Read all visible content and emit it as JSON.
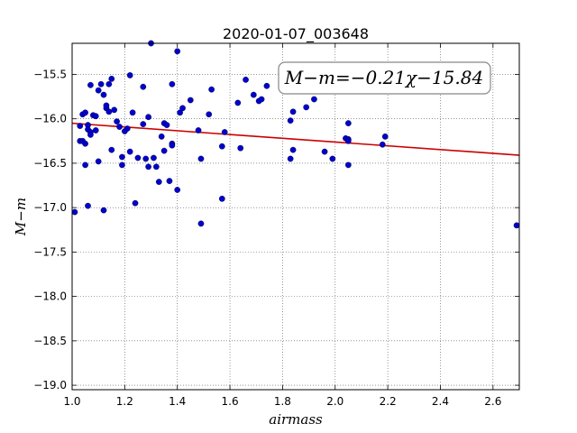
{
  "chart_data": {
    "type": "scatter",
    "title": "2020-01-07_003648",
    "xlabel": "airmass",
    "ylabel": "M−m",
    "annotation": "M−m=−0.21χ−15.84",
    "xlim": [
      1.0,
      2.7
    ],
    "ylim": [
      -19.05,
      -15.15
    ],
    "y_inverted": true,
    "grid": true,
    "xticks": [
      "1.0",
      "1.2",
      "1.4",
      "1.6",
      "1.8",
      "2.0",
      "2.2",
      "2.4",
      "2.6"
    ],
    "yticks": [
      "−15.5",
      "−16.0",
      "−16.5",
      "−17.0",
      "−17.5",
      "−18.0",
      "−18.5",
      "−19.0"
    ],
    "series": [
      {
        "kind": "points",
        "color": "#0000cc",
        "x": [
          1.01,
          1.03,
          1.03,
          1.04,
          1.04,
          1.05,
          1.05,
          1.05,
          1.06,
          1.06,
          1.06,
          1.07,
          1.07,
          1.07,
          1.08,
          1.09,
          1.09,
          1.1,
          1.1,
          1.11,
          1.12,
          1.12,
          1.13,
          1.13,
          1.14,
          1.14,
          1.15,
          1.15,
          1.16,
          1.17,
          1.18,
          1.19,
          1.19,
          1.2,
          1.21,
          1.22,
          1.22,
          1.23,
          1.24,
          1.25,
          1.27,
          1.27,
          1.28,
          1.29,
          1.29,
          1.3,
          1.31,
          1.32,
          1.33,
          1.34,
          1.35,
          1.35,
          1.36,
          1.37,
          1.38,
          1.38,
          1.38,
          1.4,
          1.4,
          1.41,
          1.42,
          1.45,
          1.48,
          1.49,
          1.49,
          1.52,
          1.53,
          1.57,
          1.57,
          1.58,
          1.63,
          1.64,
          1.66,
          1.69,
          1.71,
          1.72,
          1.74,
          1.83,
          1.83,
          1.84,
          1.84,
          1.89,
          1.92,
          1.96,
          1.99,
          2.04,
          2.05,
          2.05,
          2.05,
          2.05,
          2.18,
          2.19,
          2.69
        ],
        "y": [
          -17.05,
          -16.25,
          -16.08,
          -15.95,
          -16.25,
          -16.28,
          -16.52,
          -15.93,
          -16.07,
          -16.12,
          -16.98,
          -15.62,
          -16.15,
          -16.18,
          -15.96,
          -15.97,
          -16.13,
          -16.48,
          -15.68,
          -15.61,
          -15.73,
          -17.03,
          -15.88,
          -15.85,
          -15.92,
          -15.61,
          -15.55,
          -16.35,
          -15.9,
          -16.03,
          -16.09,
          -16.43,
          -16.52,
          -16.14,
          -16.11,
          -15.51,
          -16.37,
          -15.93,
          -16.95,
          -16.44,
          -15.64,
          -16.06,
          -16.45,
          -15.98,
          -16.54,
          -15.15,
          -16.44,
          -16.54,
          -16.71,
          -16.2,
          -16.05,
          -16.36,
          -16.07,
          -16.7,
          -15.61,
          -16.28,
          -16.3,
          -16.8,
          -15.24,
          -15.93,
          -15.88,
          -15.79,
          -16.13,
          -17.18,
          -16.45,
          -15.95,
          -15.67,
          -16.9,
          -16.31,
          -16.15,
          -15.82,
          -16.33,
          -15.56,
          -15.73,
          -15.8,
          -15.78,
          -15.63,
          -16.02,
          -16.45,
          -15.92,
          -16.35,
          -15.87,
          -15.78,
          -16.37,
          -16.45,
          -16.22,
          -16.23,
          -16.05,
          -16.25,
          -16.52,
          -16.29,
          -16.2,
          -17.2
        ]
      },
      {
        "kind": "fit-line",
        "color": "#cc0000",
        "x": [
          1.0,
          2.7
        ],
        "y": [
          -16.05,
          -16.41
        ]
      }
    ]
  }
}
